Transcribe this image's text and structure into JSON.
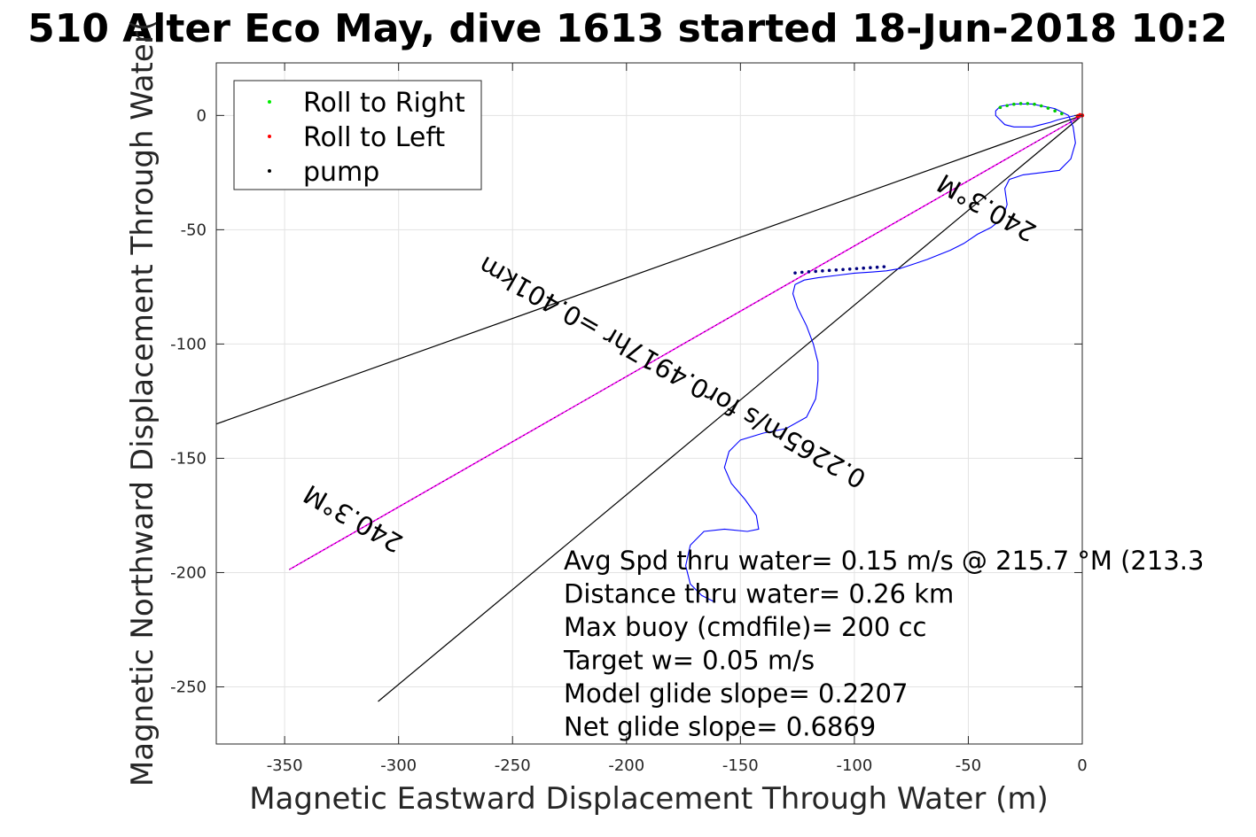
{
  "chart_data": {
    "type": "line",
    "title": "510 Alter Eco May, dive 1613 started 18-Jun-2018 10:2",
    "xlabel": "Magnetic Eastward Displacement Through Water (m)",
    "ylabel": "Magnetic Northward Displacement Through Water(",
    "xlim": [
      -380,
      0
    ],
    "ylim": [
      -275,
      23
    ],
    "x_ticks": [
      "-350",
      "-300",
      "-250",
      "-200",
      "-150",
      "-100",
      "-50",
      "0"
    ],
    "y_ticks": [
      "0",
      "-50",
      "-100",
      "-150",
      "-200",
      "-250"
    ],
    "x_tick_values": [
      -350,
      -300,
      -250,
      -200,
      -150,
      -100,
      -50,
      0
    ],
    "y_tick_values": [
      0,
      -50,
      -100,
      -150,
      -200,
      -250
    ],
    "grid": true,
    "legend": {
      "placement": "top-left",
      "entries": [
        {
          "label": "Roll to Right",
          "color": "#00ee00"
        },
        {
          "label": "Roll to Left",
          "color": "#ff0000"
        },
        {
          "label": "pump",
          "color": "#000000"
        }
      ]
    },
    "track": {
      "color": "#0000ff",
      "x": [
        -0.5,
        -3,
        -7,
        -11,
        -14,
        -18,
        -22,
        -26,
        -30,
        -34,
        -36,
        -38,
        -38,
        -36,
        -30,
        -22,
        -12,
        -6,
        -4,
        -3,
        -5,
        -10,
        -18,
        -26,
        -32,
        -34,
        -33,
        -35,
        -40,
        -46,
        -52,
        -58,
        -63,
        -68,
        -74,
        -80,
        -86,
        -92,
        -100,
        -108,
        -116,
        -122,
        -126,
        -127,
        -125,
        -121,
        -118,
        -116,
        -116,
        -117,
        -121,
        -130,
        -140,
        -150,
        -155,
        -157,
        -154,
        -148,
        -143,
        -142,
        -147,
        -157,
        -166,
        -172,
        -174,
        -172,
        -167,
        -161
      ],
      "y": [
        0,
        0,
        -1,
        -2,
        -3,
        -4,
        -5,
        -5,
        -5,
        -4,
        -2,
        0,
        2,
        4,
        5,
        5,
        3,
        0,
        -5,
        -12,
        -19,
        -24,
        -25,
        -26,
        -28,
        -32,
        -39,
        -45,
        -49,
        -52,
        -56,
        -59,
        -61,
        -63,
        -65,
        -67,
        -68,
        -68.5,
        -69,
        -70,
        -71,
        -72,
        -74,
        -78,
        -84,
        -92,
        -100,
        -108,
        -116,
        -124,
        -132,
        -137,
        -139,
        -142,
        -147,
        -154,
        -161,
        -168,
        -175,
        -181,
        -182,
        -181,
        -182,
        -188,
        -197,
        -205,
        -210,
        -213
      ]
    },
    "pump_points": {
      "color": "#000080",
      "x": [
        -126,
        -123,
        -120,
        -117,
        -114,
        -111,
        -108,
        -105,
        -102,
        -99,
        -96,
        -93,
        -90,
        -87
      ],
      "y": [
        -68.9,
        -68.6,
        -68.4,
        -68.2,
        -68.0,
        -67.8,
        -67.6,
        -67.4,
        -67.2,
        -67.0,
        -66.8,
        -66.6,
        -66.4,
        -66.2
      ]
    },
    "roll_right_points": {
      "color": "#00cc00",
      "x": [
        -36,
        -33,
        -30,
        -27,
        -24,
        -21,
        -18,
        -15,
        -12,
        -9
      ],
      "y": [
        3.5,
        4.3,
        4.9,
        5.2,
        5.2,
        4.9,
        4.2,
        3.2,
        2.0,
        0.8
      ]
    },
    "roll_left_points": {
      "color": "#ff0000",
      "x": [
        0,
        -1,
        -2
      ],
      "y": [
        0,
        0.2,
        -0.3
      ]
    },
    "bounding_lines": [
      {
        "x": [
          0,
          -380
        ],
        "y": [
          0,
          -135
        ]
      },
      {
        "x": [
          0,
          -309
        ],
        "y": [
          0,
          -256.4
        ]
      }
    ],
    "heading_line": {
      "x": [
        0,
        -348
      ],
      "y": [
        0,
        -198.7
      ],
      "color": "#ff00ff"
    },
    "rotated_labels": [
      {
        "text": "240.3°M",
        "x": -318,
        "y": -173,
        "angle": 209.7
      },
      {
        "text": "240.3°M",
        "x": -40,
        "y": -37,
        "angle": 209.7
      },
      {
        "text": "0.2265m/s for0.4917hr =0.401km",
        "x": -178,
        "y": -109,
        "angle": 209.7
      }
    ],
    "annotations": [
      "Avg Spd thru water=  0.15 m/s @ 215.7 °M (213.3",
      "Distance thru water=  0.26 km",
      "Max buoy (cmdfile)= 200 cc",
      "Target w= 0.05 m/s",
      "Model glide slope= 0.2207",
      "Net glide slope= 0.6869"
    ]
  }
}
